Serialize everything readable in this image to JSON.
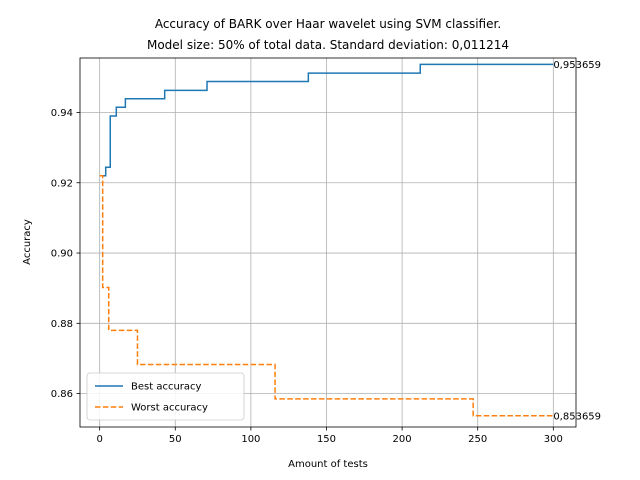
{
  "chart_data": {
    "type": "line",
    "title": "Accuracy of BARK over Haar wavelet using SVM classifier.",
    "subtitle": "Model size: 50% of total data. Standard deviation: 0,011214",
    "xlabel": "Amount of tests",
    "ylabel": "Accuracy",
    "xlim": [
      -13,
      315
    ],
    "ylim": [
      0.8505,
      0.9555
    ],
    "xticks": [
      0,
      50,
      100,
      150,
      200,
      250,
      300
    ],
    "yticks": [
      0.86,
      0.88,
      0.9,
      0.92,
      0.94
    ],
    "xtick_labels": [
      "0",
      "50",
      "100",
      "150",
      "200",
      "250",
      "300"
    ],
    "ytick_labels": [
      "0.86",
      "0.88",
      "0.90",
      "0.92",
      "0.94"
    ],
    "grid": true,
    "legend_position": "lower-left",
    "series": [
      {
        "name": "Best accuracy",
        "color": "#1f77b4",
        "style": "solid",
        "step": true,
        "x": [
          0,
          2,
          4,
          7,
          11,
          14,
          17,
          43,
          71,
          138,
          212,
          300
        ],
        "y": [
          0.922,
          0.922,
          0.9244,
          0.939,
          0.9415,
          0.9415,
          0.9439,
          0.9463,
          0.9488,
          0.9512,
          0.9537,
          0.9537
        ]
      },
      {
        "name": "Worst accuracy",
        "color": "#ff7f0e",
        "style": "dashed",
        "step": true,
        "x": [
          0,
          2,
          6,
          25,
          116,
          247,
          300
        ],
        "y": [
          0.922,
          0.8902,
          0.878,
          0.8683,
          0.8585,
          0.8537,
          0.8537
        ]
      }
    ],
    "annotations": [
      {
        "text": "0,953659",
        "x": 300,
        "y": 0.9537
      },
      {
        "text": "0,853659",
        "x": 300,
        "y": 0.8537
      }
    ]
  }
}
